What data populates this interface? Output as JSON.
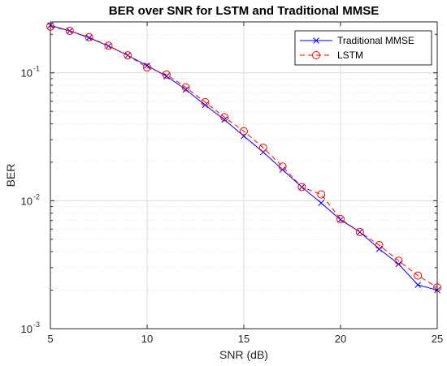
{
  "chart_data": {
    "type": "line",
    "title": "BER over SNR for LSTM and Traditional MMSE",
    "xlabel": "SNR (dB)",
    "ylabel": "BER",
    "xlim": [
      5,
      25
    ],
    "ylim": [
      0.001,
      0.25
    ],
    "yscale": "log",
    "grid": true,
    "legend_position": "top-right",
    "xticks": [
      5,
      10,
      15,
      20,
      25
    ],
    "xtick_labels": [
      "5",
      "10",
      "15",
      "20",
      "25"
    ],
    "yticks": [
      {
        "value": 0.001,
        "base": "10",
        "exp": "-3"
      },
      {
        "value": 0.01,
        "base": "10",
        "exp": "-2"
      },
      {
        "value": 0.1,
        "base": "10",
        "exp": "-1"
      }
    ],
    "x": [
      5,
      6,
      7,
      8,
      9,
      10,
      11,
      12,
      13,
      14,
      15,
      16,
      17,
      18,
      19,
      20,
      21,
      22,
      23,
      24,
      25
    ],
    "series": [
      {
        "name": "Traditional MMSE",
        "color": "#0000ff",
        "line_style": "solid",
        "marker": "x",
        "values": [
          0.235,
          0.213,
          0.188,
          0.162,
          0.137,
          0.114,
          0.094,
          0.074,
          0.056,
          0.043,
          0.032,
          0.024,
          0.0175,
          0.0128,
          0.0096,
          0.0071,
          0.0057,
          0.0042,
          0.0032,
          0.0022,
          0.002
        ]
      },
      {
        "name": "LSTM",
        "color": "#ff0000",
        "line_style": "dashed",
        "marker": "o",
        "values": [
          0.23,
          0.213,
          0.19,
          0.163,
          0.137,
          0.11,
          0.097,
          0.077,
          0.059,
          0.045,
          0.035,
          0.026,
          0.0185,
          0.0128,
          0.0112,
          0.0072,
          0.0057,
          0.0045,
          0.0034,
          0.0026,
          0.0021
        ]
      }
    ]
  }
}
